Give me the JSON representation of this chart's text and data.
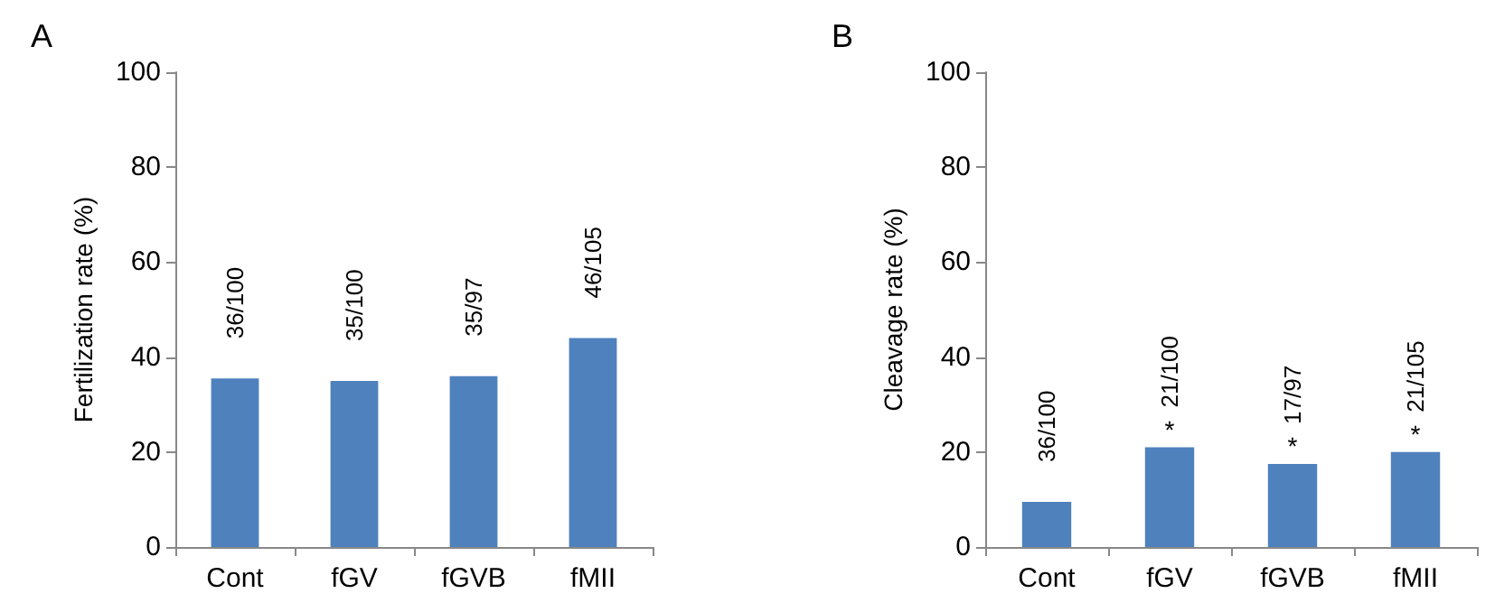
{
  "chart_data": [
    {
      "type": "bar",
      "title": "A",
      "ylabel": "Fertilization rate (%)",
      "categories": [
        "Cont",
        "fGV",
        "fGVB",
        "fMII"
      ],
      "values": [
        35.5,
        35,
        36,
        44
      ],
      "color": "#4f81bd",
      "value_labels": [
        "36/100",
        "35/100",
        "35/97",
        "46/105"
      ],
      "ylim": [
        0,
        100
      ],
      "yticks": [
        0,
        20,
        40,
        60,
        80,
        100
      ],
      "grid": false
    },
    {
      "type": "bar",
      "title": "B",
      "ylabel": "Cleavage rate (%)",
      "categories": [
        "Cont",
        "fGV",
        "fGVB",
        "fMII"
      ],
      "values": [
        9.5,
        21,
        17.5,
        20
      ],
      "color": "#4f81bd",
      "value_labels": [
        "36/100",
        "21/100",
        "17/97",
        "21/105"
      ],
      "ylim": [
        0,
        100
      ],
      "yticks": [
        0,
        20,
        40,
        60,
        80,
        100
      ],
      "grid": false,
      "annotations": [
        {
          "text": "*",
          "x": "fGV",
          "y": 21
        },
        {
          "text": "*",
          "x": "fGVB",
          "y": 17.5
        },
        {
          "text": "*",
          "x": "fMII",
          "y": 20
        }
      ]
    }
  ]
}
